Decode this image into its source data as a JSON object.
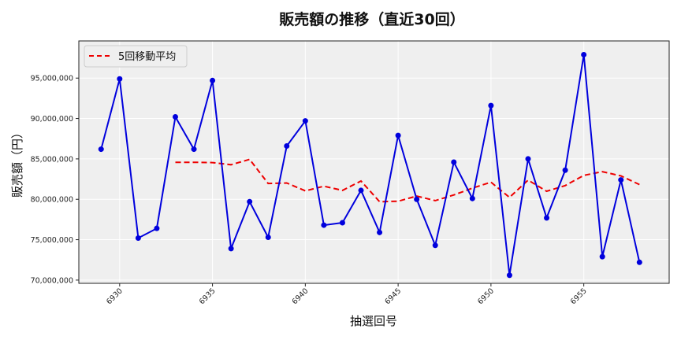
{
  "chart_data": {
    "type": "line",
    "title": "販売額の推移（直近30回）",
    "xlabel": "抽選回号",
    "ylabel": "販売額（円）",
    "x": [
      6929,
      6930,
      6931,
      6932,
      6933,
      6934,
      6935,
      6936,
      6937,
      6938,
      6939,
      6940,
      6941,
      6942,
      6943,
      6944,
      6945,
      6946,
      6947,
      6948,
      6949,
      6950,
      6951,
      6952,
      6953,
      6954,
      6955,
      6956,
      6957,
      6958
    ],
    "series": [
      {
        "name": "販売額",
        "color": "#0000dd",
        "style": "solid-with-markers",
        "values": [
          86200000,
          94900000,
          75200000,
          76400000,
          90200000,
          86200000,
          94700000,
          73900000,
          79700000,
          75300000,
          86600000,
          89700000,
          76800000,
          77100000,
          81100000,
          75900000,
          87900000,
          80000000,
          74300000,
          84600000,
          80100000,
          91600000,
          70600000,
          85000000,
          77700000,
          83600000,
          97900000,
          72900000,
          82400000,
          72200000
        ]
      },
      {
        "name": "5回移動平均",
        "color": "#ee0000",
        "style": "dashed",
        "values": [
          null,
          null,
          null,
          null,
          84580000,
          84580000,
          84540000,
          84280000,
          84940000,
          81960000,
          82020000,
          81040000,
          81620000,
          81100000,
          82260000,
          79700000,
          79760000,
          80400000,
          79840000,
          80540000,
          81380000,
          82120000,
          80240000,
          82380000,
          81000000,
          81700000,
          82960000,
          83420000,
          82900000,
          81820000
        ]
      }
    ],
    "xticks": [
      6930,
      6935,
      6940,
      6945,
      6950,
      6955
    ],
    "yticks": [
      70000000,
      75000000,
      80000000,
      85000000,
      90000000,
      95000000
    ],
    "ytick_labels": [
      "70,000,000",
      "75,000,000",
      "80,000,000",
      "85,000,000",
      "90,000,000",
      "95,000,000"
    ],
    "xlim": [
      6927.8,
      6959.6
    ],
    "ylim": [
      69600000,
      99600000
    ],
    "grid": true,
    "legend_position": "upper left",
    "legend": [
      "5回移動平均"
    ]
  },
  "colors": {
    "plot_bg": "#efefef",
    "grid": "#ffffff",
    "sales_line": "#0000dd",
    "ma_line": "#ee0000"
  }
}
